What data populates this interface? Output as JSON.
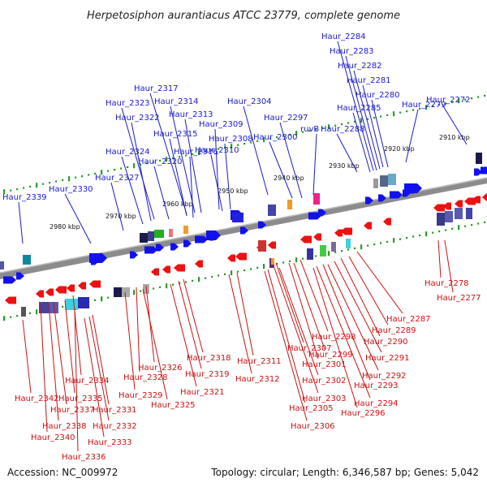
{
  "title": "Herpetosiphon aurantiacus ATCC 23779, complete genome",
  "accession": "Accession: NC_009972",
  "topology": "Topology: circular; Length: 6,346,587 bp; Genes: 5,042",
  "colors": {
    "forward_label": "#1a1acc",
    "reverse_label": "#cc1111",
    "forward_gene": "#1111ee",
    "reverse_gene": "#ee1111",
    "scale_dot": "#2a9a2a",
    "backbone": "#8c8c8c"
  },
  "scale_ticks": [
    "2910 kbp",
    "2920 kbp",
    "2930 kbp",
    "2940 kbp",
    "2950 kbp",
    "2960 kbp",
    "2970 kbp",
    "2980 kbp"
  ],
  "forward_genes": [
    "Haur_2284",
    "Haur_2283",
    "Haur_2282",
    "Haur_2281",
    "Haur_2280",
    "Haur_2279",
    "Haur_2285",
    "Haur_2272",
    "Haur_2288",
    "ruvB",
    "Haur_2297",
    "Haur_2300",
    "Haur_2304",
    "Haur_2317",
    "Haur_2314",
    "Haur_2323",
    "Haur_2313",
    "Haur_2322",
    "Haur_2309",
    "Haur_2315",
    "Haur_2308",
    "Haur_2310",
    "Haur_2316",
    "Haur_2324",
    "Haur_2320",
    "Haur_2327",
    "Haur_2330",
    "Haur_2339"
  ],
  "reverse_genes": [
    "Haur_2278",
    "Haur_2277",
    "Haur_2287",
    "Haur_2289",
    "Haur_2290",
    "Haur_2298",
    "Haur_2307",
    "Haur_2291",
    "Haur_2299",
    "Haur_2301",
    "Haur_2292",
    "Haur_2311",
    "Haur_2318",
    "Haur_2293",
    "Haur_2302",
    "Haur_2312",
    "Haur_2319",
    "Haur_2326",
    "Haur_2328",
    "Haur_2294",
    "Haur_2303",
    "Haur_2321",
    "Haur_2296",
    "Haur_2305",
    "Haur_2329",
    "Haur_2334",
    "Haur_2325",
    "Haur_2342",
    "Haur_2335",
    "Haur_2331",
    "Haur_2337",
    "Haur_2306",
    "Haur_2332",
    "Haur_2338",
    "Haur_2340",
    "Haur_2333",
    "Haur_2336"
  ]
}
